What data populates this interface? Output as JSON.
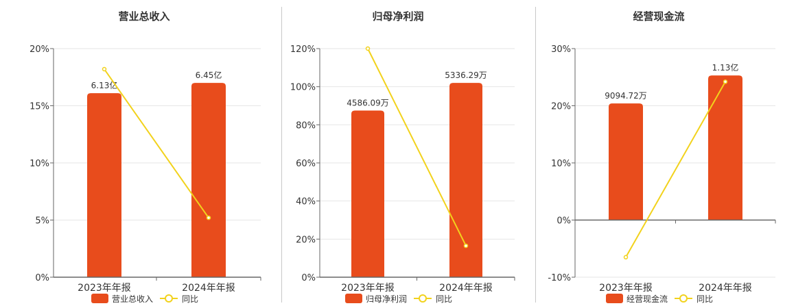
{
  "colors": {
    "bar": "#e84c1c",
    "line": "#f2d21c",
    "grid": "#e6e6e6",
    "axis": "#666666",
    "text": "#333333"
  },
  "chart_data": [
    {
      "type": "bar",
      "title": "营业总收入",
      "categories": [
        "2023年年报",
        "2024年年报"
      ],
      "series": [
        {
          "name": "营业总收入",
          "kind": "bar",
          "values": [
            16.1,
            17.0
          ],
          "labels": [
            "6.13亿",
            "6.45亿"
          ]
        },
        {
          "name": "同比",
          "kind": "line",
          "values": [
            18.2,
            5.2
          ]
        }
      ],
      "y_ticks": [
        "0%",
        "5%",
        "10%",
        "15%",
        "20%"
      ],
      "ylim": [
        0,
        20
      ],
      "legend": "bottom",
      "grid": true
    },
    {
      "type": "bar",
      "title": "归母净利润",
      "categories": [
        "2023年年报",
        "2024年年报"
      ],
      "series": [
        {
          "name": "归母净利润",
          "kind": "bar",
          "values": [
            87.5,
            102.0
          ],
          "labels": [
            "4586.09万",
            "5336.29万"
          ]
        },
        {
          "name": "同比",
          "kind": "line",
          "values": [
            120.0,
            16.5
          ]
        }
      ],
      "y_ticks": [
        "0%",
        "20%",
        "40%",
        "60%",
        "80%",
        "100%",
        "120%"
      ],
      "ylim": [
        0,
        120
      ],
      "legend": "bottom",
      "grid": true
    },
    {
      "type": "bar",
      "title": "经营现金流",
      "categories": [
        "2023年年报",
        "2024年年报"
      ],
      "series": [
        {
          "name": "经营现金流",
          "kind": "bar",
          "values": [
            20.4,
            25.3
          ],
          "labels": [
            "9094.72万",
            "1.13亿"
          ]
        },
        {
          "name": "同比",
          "kind": "line",
          "values": [
            -6.5,
            24.2
          ]
        }
      ],
      "y_ticks": [
        "-10%",
        "0%",
        "10%",
        "20%",
        "30%"
      ],
      "ylim": [
        -10,
        30
      ],
      "legend": "bottom",
      "grid": true
    }
  ]
}
